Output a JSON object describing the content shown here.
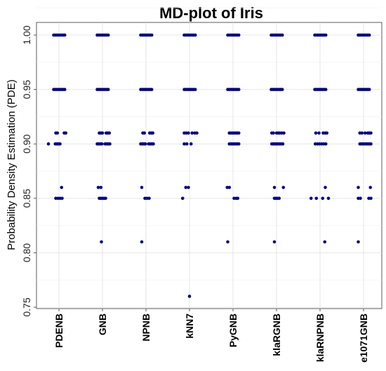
{
  "chart_data": {
    "type": "scatter",
    "title": "MD-plot of Iris",
    "xlabel": "",
    "ylabel": "Probability Density Estimation (PDE)",
    "categories": [
      "PDENB",
      "GNB",
      "NPNB",
      "kNN7",
      "PyGNB",
      "klaRGNB",
      "klaRNPNB",
      "e1071GNB"
    ],
    "ylim": [
      0.75,
      1.0
    ],
    "yticks": [
      "0.75",
      "0.80",
      "0.85",
      "0.90",
      "0.95",
      "1.00"
    ],
    "grid": true,
    "point_color": "#00008b",
    "series": [
      {
        "category": "PDENB",
        "points": [
          {
            "y": 1.0,
            "x": [
              -0.1,
              -0.07,
              -0.04,
              -0.01,
              0.02,
              0.05,
              0.08,
              0.11
            ]
          },
          {
            "y": 0.95,
            "x": [
              -0.1,
              -0.07,
              -0.04,
              -0.01,
              0.02,
              0.05,
              0.08,
              0.11
            ]
          },
          {
            "y": 0.91,
            "x": [
              -0.06,
              -0.03,
              0.1,
              0.13
            ]
          },
          {
            "y": 0.9,
            "x": [
              -0.2,
              -0.07,
              -0.04,
              -0.01,
              0.02
            ]
          },
          {
            "y": 0.86,
            "x": [
              0.05
            ]
          },
          {
            "y": 0.85,
            "x": [
              -0.06,
              -0.02,
              0.02,
              0.06
            ]
          }
        ]
      },
      {
        "category": "GNB",
        "points": [
          {
            "y": 1.0,
            "x": [
              -0.1,
              -0.07,
              -0.04,
              -0.01,
              0.02,
              0.05,
              0.08,
              0.11
            ]
          },
          {
            "y": 0.95,
            "x": [
              -0.1,
              -0.07,
              -0.04,
              -0.01,
              0.02,
              0.05,
              0.08,
              0.11
            ]
          },
          {
            "y": 0.91,
            "x": [
              -0.06,
              -0.03,
              0.0,
              0.07,
              0.1,
              0.13
            ]
          },
          {
            "y": 0.9,
            "x": [
              -0.1,
              -0.07,
              -0.04,
              -0.01,
              0.05,
              0.08,
              0.11,
              0.14
            ]
          },
          {
            "y": 0.86,
            "x": [
              -0.08,
              -0.03
            ]
          },
          {
            "y": 0.85,
            "x": [
              -0.06,
              -0.03,
              0.0,
              0.03,
              0.06
            ]
          },
          {
            "y": 0.81,
            "x": [
              -0.02
            ]
          }
        ]
      },
      {
        "category": "NPNB",
        "points": [
          {
            "y": 1.0,
            "x": [
              -0.1,
              -0.07,
              -0.04,
              -0.01,
              0.02,
              0.05,
              0.08,
              0.11
            ]
          },
          {
            "y": 0.95,
            "x": [
              -0.1,
              -0.07,
              -0.04,
              -0.01,
              0.02,
              0.05,
              0.08,
              0.11
            ]
          },
          {
            "y": 0.91,
            "x": [
              -0.06,
              -0.03,
              0.07,
              0.1,
              0.13
            ]
          },
          {
            "y": 0.9,
            "x": [
              -0.1,
              -0.07,
              -0.04,
              -0.01,
              0.05,
              0.08,
              0.11,
              0.14
            ]
          },
          {
            "y": 0.86,
            "x": [
              -0.08
            ]
          },
          {
            "y": 0.85,
            "x": [
              -0.02,
              0.02,
              0.06
            ]
          },
          {
            "y": 0.81,
            "x": [
              -0.08
            ]
          }
        ]
      },
      {
        "category": "kNN7",
        "points": [
          {
            "y": 1.0,
            "x": [
              -0.1,
              -0.07,
              -0.04,
              -0.01,
              0.02,
              0.05,
              0.08,
              0.11
            ]
          },
          {
            "y": 0.95,
            "x": [
              -0.1,
              -0.07,
              -0.04,
              -0.01,
              0.02,
              0.05,
              0.08,
              0.11
            ]
          },
          {
            "y": 0.91,
            "x": [
              -0.1,
              -0.06,
              -0.02,
              0.05,
              0.1,
              0.14
            ]
          },
          {
            "y": 0.9,
            "x": [
              -0.1,
              -0.05,
              0.03
            ]
          },
          {
            "y": 0.86,
            "x": [
              -0.07,
              -0.02
            ]
          },
          {
            "y": 0.85,
            "x": [
              -0.13
            ]
          },
          {
            "y": 0.76,
            "x": [
              0.0
            ]
          }
        ]
      },
      {
        "category": "PyGNB",
        "points": [
          {
            "y": 1.0,
            "x": [
              -0.1,
              -0.07,
              -0.04,
              -0.01,
              0.02,
              0.05,
              0.08,
              0.11
            ]
          },
          {
            "y": 0.95,
            "x": [
              -0.1,
              -0.07,
              -0.04,
              -0.01,
              0.02,
              0.05,
              0.08,
              0.11
            ]
          },
          {
            "y": 0.91,
            "x": [
              -0.07,
              -0.04,
              -0.01,
              0.02,
              0.05,
              0.08,
              0.11
            ]
          },
          {
            "y": 0.9,
            "x": [
              -0.07,
              -0.04,
              -0.01,
              0.02,
              0.05,
              0.08,
              0.11
            ]
          },
          {
            "y": 0.86,
            "x": [
              -0.11,
              -0.07
            ]
          },
          {
            "y": 0.85,
            "x": [
              0.02,
              0.06,
              0.09
            ]
          },
          {
            "y": 0.81,
            "x": [
              -0.1
            ]
          }
        ]
      },
      {
        "category": "klaRGNB",
        "points": [
          {
            "y": 1.0,
            "x": [
              -0.1,
              -0.07,
              -0.04,
              -0.01,
              0.02,
              0.05,
              0.08,
              0.11
            ]
          },
          {
            "y": 0.95,
            "x": [
              -0.1,
              -0.07,
              -0.04,
              -0.01,
              0.02,
              0.05,
              0.08,
              0.11
            ]
          },
          {
            "y": 0.91,
            "x": [
              -0.09,
              -0.06,
              0.0,
              0.03,
              0.06,
              0.1,
              0.14
            ]
          },
          {
            "y": 0.9,
            "x": [
              -0.09,
              -0.06,
              -0.03,
              0.0,
              0.03,
              0.06,
              0.09,
              0.12
            ]
          },
          {
            "y": 0.86,
            "x": [
              -0.04,
              0.13
            ]
          },
          {
            "y": 0.85,
            "x": [
              -0.04,
              -0.01,
              0.02,
              0.05
            ]
          },
          {
            "y": 0.81,
            "x": [
              -0.04
            ]
          }
        ]
      },
      {
        "category": "klaRNPNB",
        "points": [
          {
            "y": 1.0,
            "x": [
              -0.1,
              -0.07,
              -0.04,
              -0.01,
              0.02,
              0.05,
              0.08,
              0.11
            ]
          },
          {
            "y": 0.95,
            "x": [
              -0.1,
              -0.07,
              -0.04,
              -0.01,
              0.02,
              0.05,
              0.08,
              0.11
            ]
          },
          {
            "y": 0.91,
            "x": [
              -0.08,
              -0.02,
              0.06,
              0.1,
              0.13
            ]
          },
          {
            "y": 0.9,
            "x": [
              -0.09,
              -0.05,
              -0.01,
              0.03,
              0.07,
              0.11
            ]
          },
          {
            "y": 0.86,
            "x": [
              0.1
            ]
          },
          {
            "y": 0.85,
            "x": [
              -0.17,
              -0.07,
              0.05,
              0.16
            ]
          },
          {
            "y": 0.81,
            "x": [
              0.09
            ]
          }
        ]
      },
      {
        "category": "e1071GNB",
        "points": [
          {
            "y": 1.0,
            "x": [
              -0.1,
              -0.07,
              -0.04,
              -0.01,
              0.02,
              0.05,
              0.08,
              0.11
            ]
          },
          {
            "y": 0.95,
            "x": [
              -0.1,
              -0.07,
              -0.04,
              -0.01,
              0.02,
              0.05,
              0.08,
              0.11
            ]
          },
          {
            "y": 0.91,
            "x": [
              -0.07,
              -0.03,
              0.03,
              0.08,
              0.11,
              0.14
            ]
          },
          {
            "y": 0.9,
            "x": [
              -0.07,
              -0.04,
              -0.01,
              0.02,
              0.05,
              0.08,
              0.11,
              0.14
            ]
          },
          {
            "y": 0.86,
            "x": [
              -0.1,
              0.13
            ]
          },
          {
            "y": 0.85,
            "x": [
              -0.1,
              -0.06,
              0.1,
              0.14
            ]
          },
          {
            "y": 0.81,
            "x": [
              -0.1
            ]
          }
        ]
      }
    ]
  }
}
